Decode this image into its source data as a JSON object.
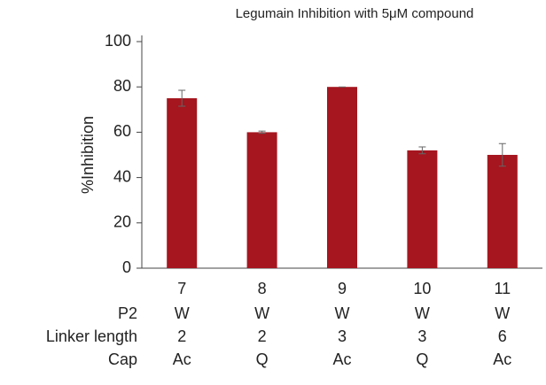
{
  "chart_data": {
    "type": "bar",
    "title": "Legumain Inhibition with 5μM compound",
    "y_label": "%Inhibition",
    "categories": [
      "7",
      "8",
      "9",
      "10",
      "11"
    ],
    "values": [
      75,
      60,
      80,
      52,
      50
    ],
    "errors": [
      3.5,
      0.5,
      0,
      1.5,
      5
    ],
    "color": "#a5161f",
    "ylim": [
      0,
      100
    ],
    "yticks": [
      0,
      20,
      40,
      60,
      80,
      100
    ],
    "table_rows": [
      {
        "label": "P2",
        "values": [
          "W",
          "W",
          "W",
          "W",
          "W"
        ]
      },
      {
        "label": "Linker length",
        "values": [
          2,
          2,
          3,
          3,
          6
        ]
      },
      {
        "label": "Cap",
        "values": [
          "Ac",
          "Q",
          "Ac",
          "Q",
          "Ac"
        ]
      }
    ]
  }
}
